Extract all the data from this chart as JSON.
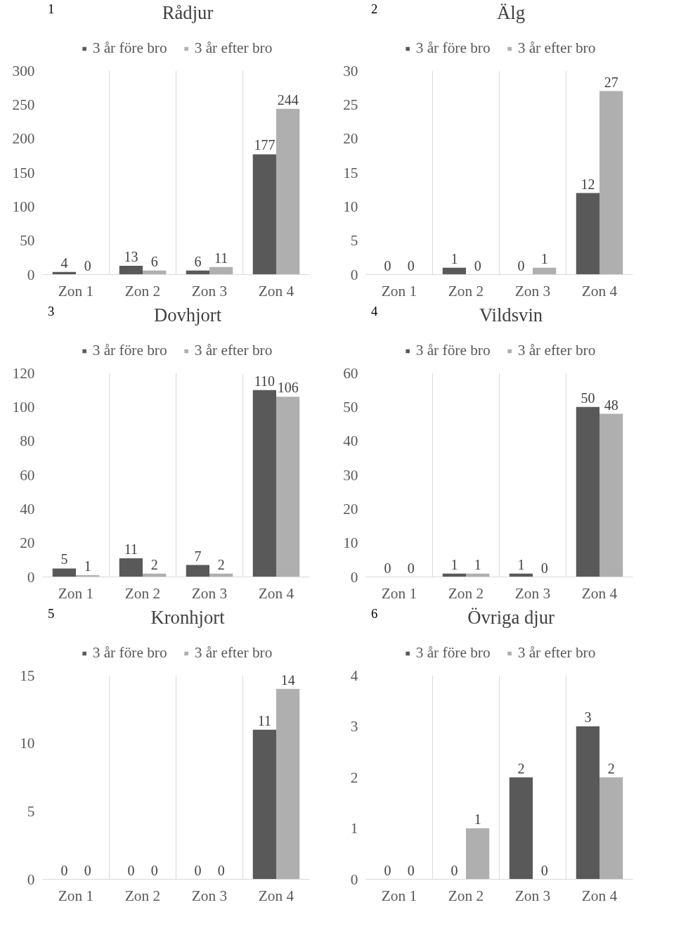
{
  "chart_data": [
    {
      "type": "bar",
      "title": "Rådjur",
      "annotations": [
        "1"
      ],
      "categories": [
        "Zon 1",
        "Zon 2",
        "Zon 3",
        "Zon 4"
      ],
      "series": [
        {
          "name": "3 år före bro",
          "color": "#595959",
          "values": [
            4,
            13,
            6,
            177
          ]
        },
        {
          "name": "3 år efter bro",
          "color": "#afafaf",
          "values": [
            0,
            6,
            11,
            244
          ]
        }
      ],
      "ylim": [
        0,
        300
      ],
      "yticks": [
        0,
        50,
        100,
        150,
        200,
        250,
        300
      ],
      "data_labels": true,
      "legend": "top",
      "grid": "x"
    },
    {
      "type": "bar",
      "title": "Älg",
      "annotations": [
        "2"
      ],
      "categories": [
        "Zon 1",
        "Zon 2",
        "Zon 3",
        "Zon 4"
      ],
      "series": [
        {
          "name": "3 år före bro",
          "color": "#595959",
          "values": [
            0,
            1,
            0,
            12
          ]
        },
        {
          "name": "3 år efter bro",
          "color": "#afafaf",
          "values": [
            0,
            0,
            1,
            27
          ]
        }
      ],
      "ylim": [
        0,
        30
      ],
      "yticks": [
        0,
        5,
        10,
        15,
        20,
        25,
        30
      ],
      "data_labels": true,
      "legend": "top",
      "grid": "x"
    },
    {
      "type": "bar",
      "title": "Dovhjort",
      "annotations": [
        "3"
      ],
      "categories": [
        "Zon 1",
        "Zon 2",
        "Zon 3",
        "Zon 4"
      ],
      "series": [
        {
          "name": "3 år före bro",
          "color": "#595959",
          "values": [
            5,
            11,
            7,
            110
          ]
        },
        {
          "name": "3 år efter bro",
          "color": "#afafaf",
          "values": [
            1,
            2,
            2,
            106
          ]
        }
      ],
      "ylim": [
        0,
        120
      ],
      "yticks": [
        0,
        20,
        40,
        60,
        80,
        100,
        120
      ],
      "data_labels": true,
      "legend": "top",
      "grid": "x"
    },
    {
      "type": "bar",
      "title": "Vildsvin",
      "annotations": [
        "4"
      ],
      "categories": [
        "Zon 1",
        "Zon 2",
        "Zon 3",
        "Zon 4"
      ],
      "series": [
        {
          "name": "3 år före bro",
          "color": "#595959",
          "values": [
            0,
            1,
            1,
            50
          ]
        },
        {
          "name": "3 år efter bro",
          "color": "#afafaf",
          "values": [
            0,
            1,
            0,
            48
          ]
        }
      ],
      "ylim": [
        0,
        60
      ],
      "yticks": [
        0,
        10,
        20,
        30,
        40,
        50,
        60
      ],
      "data_labels": true,
      "legend": "top",
      "grid": "x"
    },
    {
      "type": "bar",
      "title": "Kronhjort",
      "annotations": [
        "5"
      ],
      "categories": [
        "Zon 1",
        "Zon 2",
        "Zon 3",
        "Zon 4"
      ],
      "series": [
        {
          "name": "3 år före bro",
          "color": "#595959",
          "values": [
            0,
            0,
            0,
            11
          ]
        },
        {
          "name": "3 år efter bro",
          "color": "#afafaf",
          "values": [
            0,
            0,
            0,
            14
          ]
        }
      ],
      "ylim": [
        0,
        15
      ],
      "yticks": [
        0,
        5,
        10,
        15
      ],
      "data_labels": true,
      "legend": "top",
      "grid": "x"
    },
    {
      "type": "bar",
      "title": "Övriga djur",
      "annotations": [
        "6"
      ],
      "categories": [
        "Zon 1",
        "Zon 2",
        "Zon 3",
        "Zon 4"
      ],
      "series": [
        {
          "name": "3 år före bro",
          "color": "#595959",
          "values": [
            0,
            0,
            2,
            3
          ]
        },
        {
          "name": "3 år efter bro",
          "color": "#afafaf",
          "values": [
            0,
            1,
            0,
            2
          ]
        }
      ],
      "ylim": [
        0,
        4
      ],
      "yticks": [
        0,
        1,
        2,
        3,
        4
      ],
      "data_labels": true,
      "legend": "top",
      "grid": "x"
    }
  ]
}
